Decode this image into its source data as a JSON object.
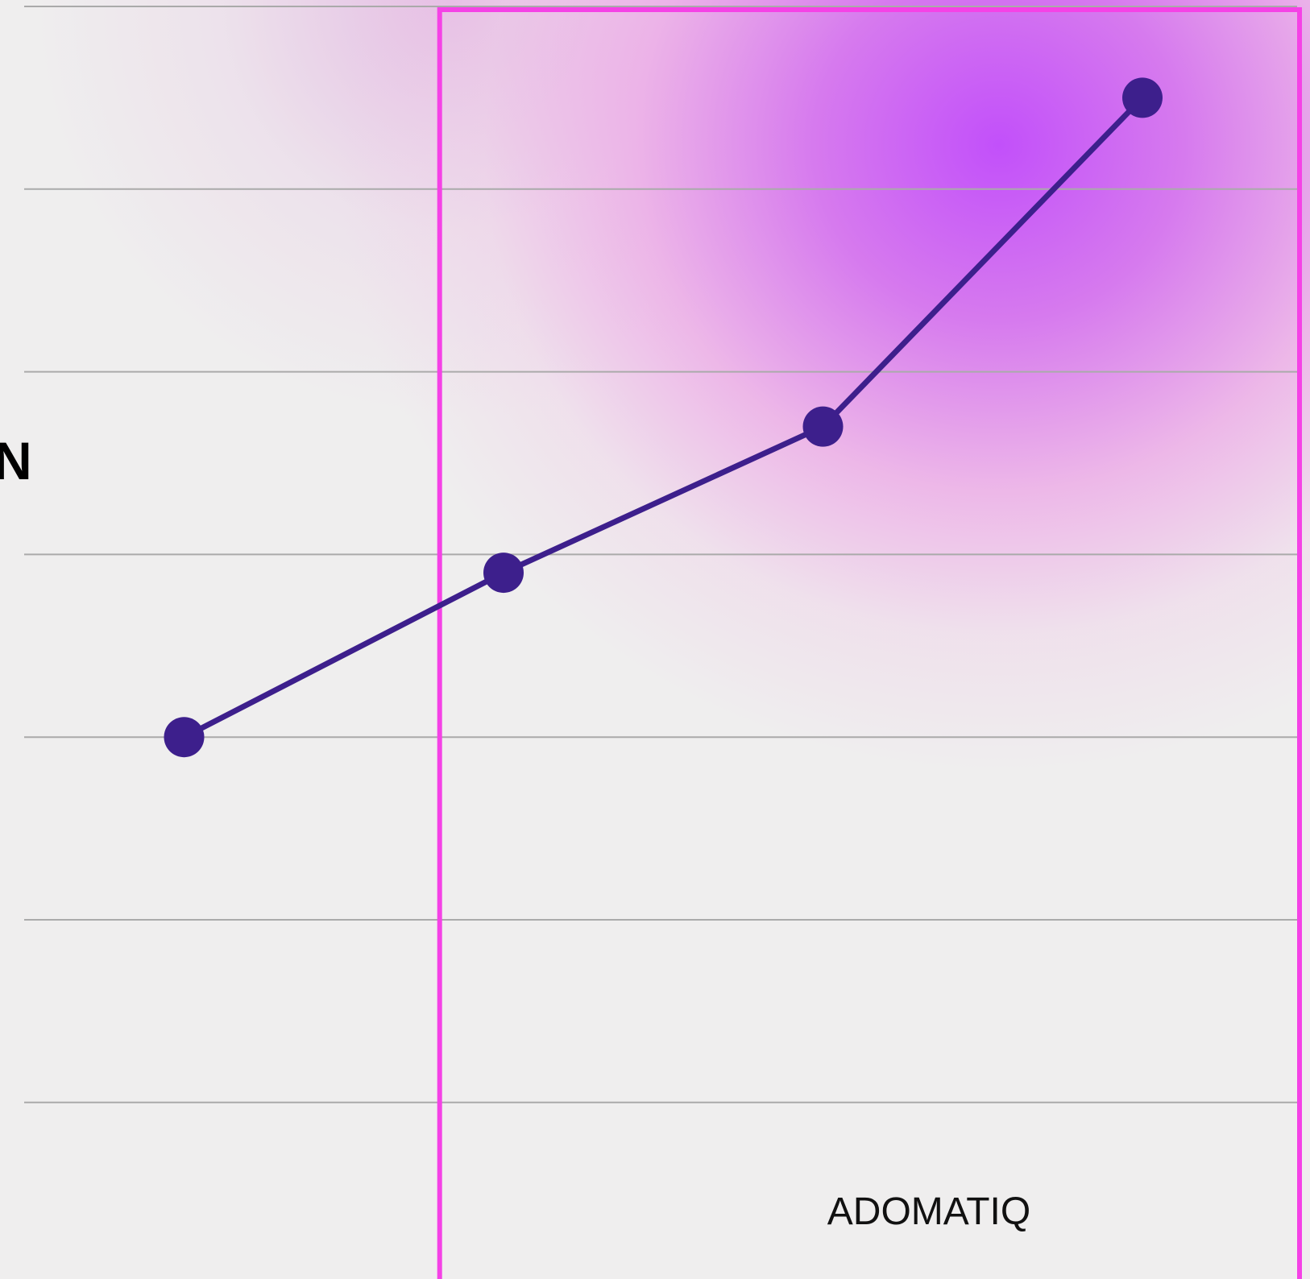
{
  "brand": "ADOMATIQ",
  "side_title": "N",
  "colors": {
    "background": "#efeeee",
    "line": "#3d1f8c",
    "point": "#3d1f8c",
    "highlight_border": "#f542e6",
    "gridline": "#aaaaaa"
  },
  "chart_data": {
    "type": "line",
    "title": "",
    "xlabel": "",
    "ylabel": "",
    "grid": true,
    "ylim": [
      0,
      7
    ],
    "x": [
      1,
      2,
      3,
      4
    ],
    "series": [
      {
        "values": [
          3.0,
          3.9,
          4.7,
          6.5
        ]
      }
    ],
    "highlight": {
      "x_from": 1.8,
      "x_to": 4.5
    }
  }
}
